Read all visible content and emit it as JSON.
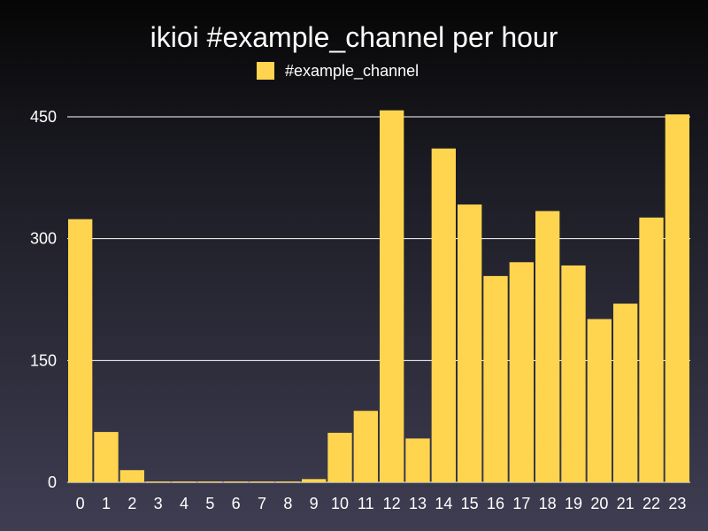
{
  "chart_data": {
    "type": "bar",
    "title": "ikioi #example_channel per hour",
    "xlabel": "",
    "ylabel": "",
    "categories": [
      "0",
      "1",
      "2",
      "3",
      "4",
      "5",
      "6",
      "7",
      "8",
      "9",
      "10",
      "11",
      "12",
      "13",
      "14",
      "15",
      "16",
      "17",
      "18",
      "19",
      "20",
      "21",
      "22",
      "23"
    ],
    "series": [
      {
        "name": "#example_channel",
        "values": [
          324,
          62,
          15,
          1,
          1,
          1,
          1,
          1,
          1,
          4,
          61,
          88,
          458,
          54,
          411,
          342,
          254,
          271,
          334,
          267,
          201,
          220,
          326,
          453
        ]
      }
    ],
    "ylim": [
      0,
      450
    ],
    "yticks": [
      "0",
      "150",
      "300",
      "450"
    ],
    "grid": true,
    "legend_position": "top-center",
    "colors": {
      "bar": "#ffd54f",
      "grid": "#ffffff",
      "text": "#ffffff"
    }
  }
}
